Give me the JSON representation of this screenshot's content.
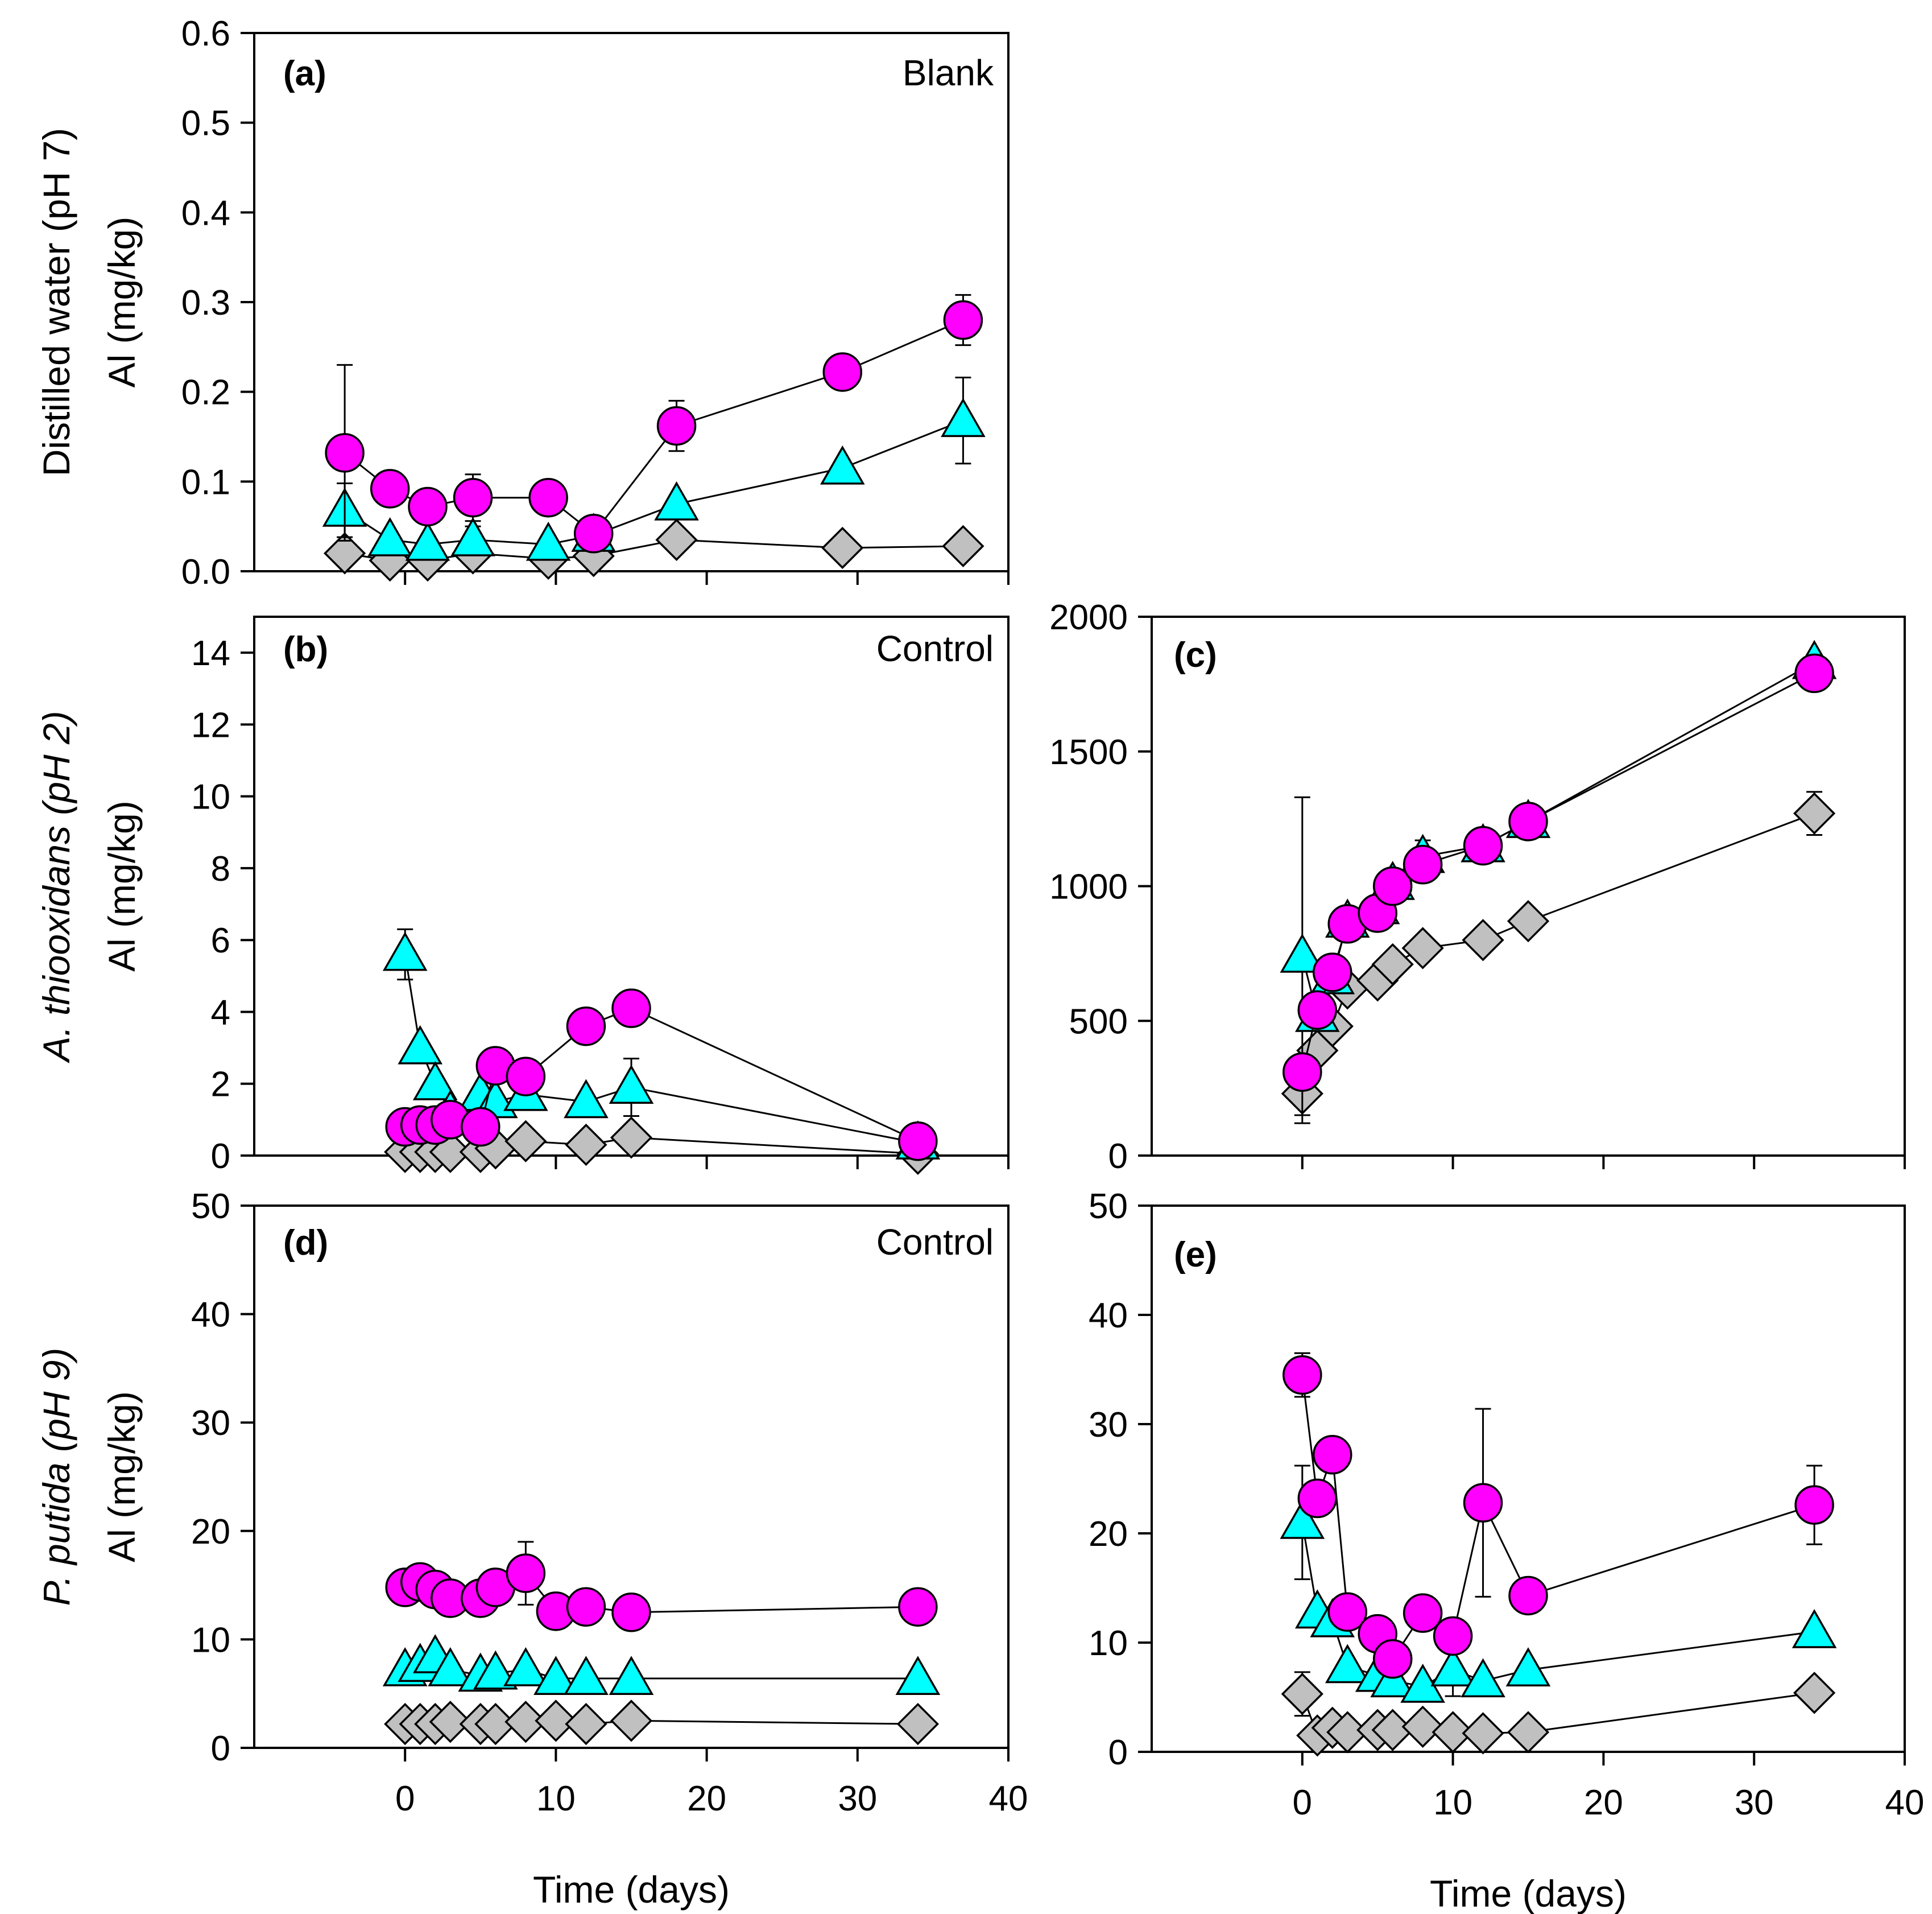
{
  "chart_data": [
    {
      "id": "a",
      "type": "scatter",
      "panel_label": "(a)",
      "treatment": "Blank",
      "ylabel": "Distilled water (pH 7)",
      "ylabel2": "Al (mg/kg)",
      "ylim": [
        0,
        0.6
      ],
      "yticks": [
        0.0,
        0.1,
        0.2,
        0.3,
        0.4,
        0.5,
        0.6
      ],
      "ytick_decimals": 1,
      "xlim": [
        -10,
        40
      ],
      "xticks": [
        0,
        10,
        20,
        30,
        40
      ],
      "xtick_labels": false,
      "xlabel": "",
      "series": [
        {
          "name": "circle",
          "marker": "circle",
          "color": "#ff00ff",
          "x": [
            -4,
            -1,
            1.5,
            4.5,
            9.5,
            12.5,
            18,
            29,
            37
          ],
          "y": [
            0.132,
            0.092,
            0.072,
            0.082,
            0.082,
            0.042,
            0.162,
            0.222,
            0.28
          ],
          "err": [
            0.098,
            0.015,
            0.012,
            0.026,
            0,
            0,
            0.028,
            0,
            0.028
          ]
        },
        {
          "name": "triangle",
          "marker": "triangle",
          "color": "#00ffff",
          "x": [
            -4,
            -1,
            1.5,
            4.5,
            9.5,
            12.5,
            18,
            29,
            37
          ],
          "y": [
            0.068,
            0.035,
            0.03,
            0.035,
            0.03,
            0.04,
            0.075,
            0.115,
            0.168
          ],
          "err": [
            0.03,
            0,
            0,
            0.015,
            0,
            0,
            0,
            0,
            0.048
          ]
        },
        {
          "name": "diamond",
          "marker": "diamond",
          "color": "#c0c0c0",
          "x": [
            -4,
            -1,
            1.5,
            4.5,
            9.5,
            12.5,
            18,
            29,
            37
          ],
          "y": [
            0.02,
            0.012,
            0.012,
            0.02,
            0.014,
            0.017,
            0.035,
            0.026,
            0.028
          ],
          "err": [
            0,
            0,
            0,
            0,
            0,
            0,
            0,
            0,
            0
          ]
        }
      ]
    },
    {
      "id": "b",
      "type": "scatter",
      "panel_label": "(b)",
      "treatment": "Control",
      "ylabel": "A. thiooxidans (pH 2)",
      "ylabel2": "Al (mg/kg)",
      "ylim": [
        0,
        15
      ],
      "yticks": [
        0,
        2,
        4,
        6,
        8,
        10,
        12,
        14
      ],
      "ytick_decimals": 0,
      "xlim": [
        -10,
        40
      ],
      "xticks": [
        0,
        10,
        20,
        30,
        40
      ],
      "xtick_labels": false,
      "xlabel": "",
      "series": [
        {
          "name": "circle",
          "marker": "circle",
          "color": "#ff00ff",
          "x": [
            0,
            1,
            2,
            3,
            5,
            6,
            8,
            12,
            15,
            34
          ],
          "y": [
            0.8,
            0.85,
            0.85,
            1.0,
            0.8,
            2.5,
            2.2,
            3.6,
            4.1,
            0.4
          ],
          "err": [
            0,
            0,
            0,
            0,
            0,
            0,
            0,
            0,
            0,
            0
          ]
        },
        {
          "name": "triangle",
          "marker": "triangle",
          "color": "#00ffff",
          "x": [
            0,
            1,
            2,
            3,
            5,
            6,
            8,
            12,
            15,
            34
          ],
          "y": [
            5.6,
            3.0,
            2.0,
            1.2,
            1.7,
            1.5,
            1.7,
            1.5,
            1.9,
            0.35
          ],
          "err": [
            0.7,
            0,
            0,
            0,
            0,
            0,
            0,
            0,
            0.8,
            0
          ]
        },
        {
          "name": "diamond",
          "marker": "diamond",
          "color": "#c0c0c0",
          "x": [
            0,
            1,
            2,
            3,
            5,
            6,
            8,
            12,
            15,
            34
          ],
          "y": [
            0.1,
            0.1,
            0.1,
            0.1,
            0.1,
            0.2,
            0.4,
            0.3,
            0.5,
            0.05
          ],
          "err": [
            0,
            0,
            0,
            0,
            0,
            0,
            0,
            0,
            0,
            0
          ]
        }
      ]
    },
    {
      "id": "c",
      "type": "scatter",
      "panel_label": "(c)",
      "treatment": "",
      "ylabel": "",
      "ylabel2": "",
      "ylim": [
        0,
        2000
      ],
      "yticks": [
        0,
        500,
        1000,
        1500,
        2000
      ],
      "ytick_decimals": 0,
      "xlim": [
        -10,
        40
      ],
      "xticks": [
        0,
        10,
        20,
        30,
        40
      ],
      "xtick_labels": false,
      "xlabel": "",
      "series": [
        {
          "name": "circle",
          "marker": "circle",
          "color": "#ff00ff",
          "x": [
            0,
            1,
            2,
            3,
            5,
            6,
            8,
            12,
            15,
            34
          ],
          "y": [
            310,
            540,
            680,
            860,
            900,
            1000,
            1080,
            1150,
            1240,
            1790
          ],
          "err": [
            0,
            0,
            0,
            0,
            0,
            0,
            0,
            0,
            0,
            0
          ]
        },
        {
          "name": "triangle",
          "marker": "triangle",
          "color": "#00ffff",
          "x": [
            0,
            1,
            2,
            3,
            5,
            6,
            8,
            12,
            15,
            34
          ],
          "y": [
            740,
            520,
            660,
            870,
            920,
            1010,
            1110,
            1150,
            1240,
            1830
          ],
          "err": [
            590,
            0,
            0,
            0,
            0,
            0,
            60,
            30,
            0,
            0
          ]
        },
        {
          "name": "diamond",
          "marker": "diamond",
          "color": "#c0c0c0",
          "x": [
            0,
            1,
            2,
            3,
            5,
            6,
            8,
            12,
            15,
            34
          ],
          "y": [
            230,
            390,
            480,
            620,
            650,
            710,
            770,
            800,
            870,
            1270
          ],
          "err": [
            110,
            0,
            0,
            0,
            0,
            0,
            0,
            0,
            0,
            80
          ]
        }
      ]
    },
    {
      "id": "d",
      "type": "scatter",
      "panel_label": "(d)",
      "treatment": "Control",
      "ylabel": "P. putida (pH 9)",
      "ylabel2": "Al (mg/kg)",
      "ylim": [
        0,
        50
      ],
      "yticks": [
        0,
        10,
        20,
        30,
        40,
        50
      ],
      "ytick_decimals": 0,
      "xlim": [
        -10,
        40
      ],
      "xticks": [
        0,
        10,
        20,
        30,
        40
      ],
      "xtick_labels": true,
      "xlabel": "Time (days)",
      "series": [
        {
          "name": "circle",
          "marker": "circle",
          "color": "#ff00ff",
          "x": [
            0,
            1,
            2,
            3,
            5,
            6,
            8,
            10,
            12,
            15,
            34
          ],
          "y": [
            14.8,
            15.3,
            14.6,
            13.8,
            13.8,
            14.8,
            16.1,
            12.6,
            13.0,
            12.5,
            13.0
          ],
          "err": [
            0,
            0,
            0,
            0,
            0,
            0,
            2.9,
            0,
            0,
            0,
            0
          ]
        },
        {
          "name": "triangle",
          "marker": "triangle",
          "color": "#00ffff",
          "x": [
            0,
            1,
            2,
            3,
            5,
            6,
            8,
            10,
            12,
            15,
            34
          ],
          "y": [
            7.2,
            7.6,
            8.4,
            7.2,
            6.7,
            6.9,
            7.2,
            6.4,
            6.4,
            6.4,
            6.4
          ],
          "err": [
            0,
            0,
            0,
            0,
            0,
            0,
            0,
            0,
            0,
            0,
            0
          ]
        },
        {
          "name": "diamond",
          "marker": "diamond",
          "color": "#c0c0c0",
          "x": [
            0,
            1,
            2,
            3,
            5,
            6,
            8,
            10,
            12,
            15,
            34
          ],
          "y": [
            2.2,
            2.2,
            2.2,
            2.4,
            2.2,
            2.2,
            2.4,
            2.5,
            2.2,
            2.5,
            2.2
          ],
          "err": [
            0,
            0,
            0,
            0,
            0,
            0,
            0,
            0,
            0,
            0,
            0
          ]
        }
      ]
    },
    {
      "id": "e",
      "type": "scatter",
      "panel_label": "(e)",
      "treatment": "",
      "ylabel": "",
      "ylabel2": "",
      "ylim": [
        0,
        50
      ],
      "yticks": [
        0,
        10,
        20,
        30,
        40,
        50
      ],
      "ytick_decimals": 0,
      "xlim": [
        -10,
        40
      ],
      "xticks": [
        0,
        10,
        20,
        30,
        40
      ],
      "xtick_labels": true,
      "xlabel": "Time (days)",
      "series": [
        {
          "name": "circle",
          "marker": "circle",
          "color": "#ff00ff",
          "x": [
            0,
            1,
            2,
            3,
            5,
            6,
            8,
            10,
            12,
            15,
            34
          ],
          "y": [
            34.5,
            23.2,
            27.2,
            12.8,
            10.8,
            8.5,
            12.7,
            10.6,
            22.8,
            14.3,
            22.6
          ],
          "err": [
            2.0,
            0,
            0,
            0,
            0,
            0,
            0,
            0,
            8.6,
            0,
            3.6
          ]
        },
        {
          "name": "triangle",
          "marker": "triangle",
          "color": "#00ffff",
          "x": [
            0,
            1,
            2,
            3,
            5,
            6,
            8,
            10,
            12,
            15,
            34
          ],
          "y": [
            21.0,
            12.8,
            12.0,
            7.8,
            7.0,
            6.5,
            6.0,
            7.5,
            6.5,
            7.5,
            11.0
          ],
          "err": [
            5.2,
            0,
            0,
            0,
            0,
            0,
            0,
            2.4,
            0,
            0,
            0
          ]
        },
        {
          "name": "diamond",
          "marker": "diamond",
          "color": "#c0c0c0",
          "x": [
            0,
            1,
            2,
            3,
            5,
            6,
            8,
            10,
            12,
            15,
            34
          ],
          "y": [
            5.3,
            1.5,
            2.2,
            1.8,
            2.0,
            2.0,
            2.3,
            1.8,
            1.7,
            1.8,
            5.4
          ],
          "err": [
            2.0,
            0,
            0,
            0,
            0,
            0,
            0,
            0,
            0,
            0,
            0.6
          ]
        }
      ]
    }
  ]
}
